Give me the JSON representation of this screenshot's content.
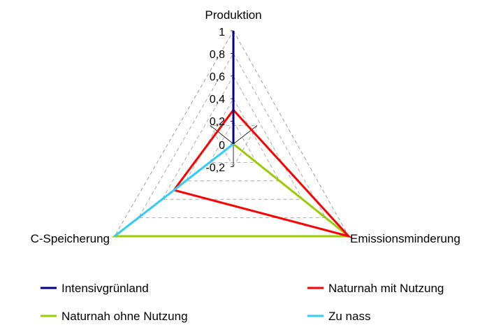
{
  "chart_data": {
    "type": "radar",
    "axes": [
      "Produktion",
      "Emissionsminderung",
      "C-Speicherung"
    ],
    "ticks": [
      "-0,2",
      "0",
      "0,2",
      "0,4",
      "0,6",
      "0,8",
      "1"
    ],
    "range": [
      -0.2,
      1
    ],
    "grid": true,
    "legend_position": "bottom",
    "series": [
      {
        "name": "Intensivgrünland",
        "color": "#000080",
        "values": [
          1,
          0,
          0
        ]
      },
      {
        "name": "Naturnah mit Nutzung",
        "color": "#ff0000",
        "values": [
          0.3,
          1,
          0.5
        ]
      },
      {
        "name": "Naturnah ohne Nutzung",
        "color": "#99cc00",
        "values": [
          0,
          1,
          1
        ]
      },
      {
        "name": "Zu nass",
        "color": "#33ccff",
        "values": [
          0,
          0,
          1
        ]
      }
    ]
  }
}
